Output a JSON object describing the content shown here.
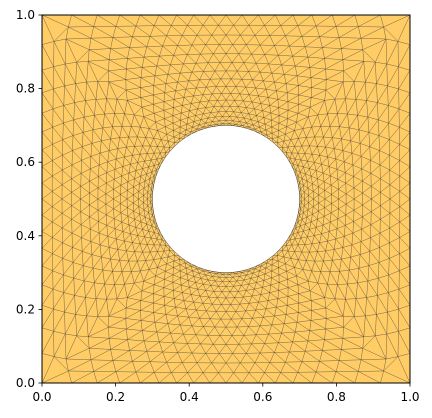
{
  "chart_data": {
    "type": "mesh",
    "xlim": [
      0,
      1
    ],
    "ylim": [
      0,
      1
    ],
    "xticks": [
      {
        "value": 0,
        "label": "0.0"
      },
      0.2,
      0.4,
      0.6,
      0.8,
      {
        "value": 1,
        "label": "1.0"
      }
    ],
    "yticks": [
      {
        "value": 0,
        "label": "0.0"
      },
      0.2,
      0.4,
      0.6,
      0.8,
      {
        "value": 1,
        "label": "1.0"
      }
    ],
    "hole": {
      "center": [
        0.5,
        0.5
      ],
      "radius": 0.2
    },
    "color": "#ffcc66",
    "edge_color": "#333333"
  }
}
